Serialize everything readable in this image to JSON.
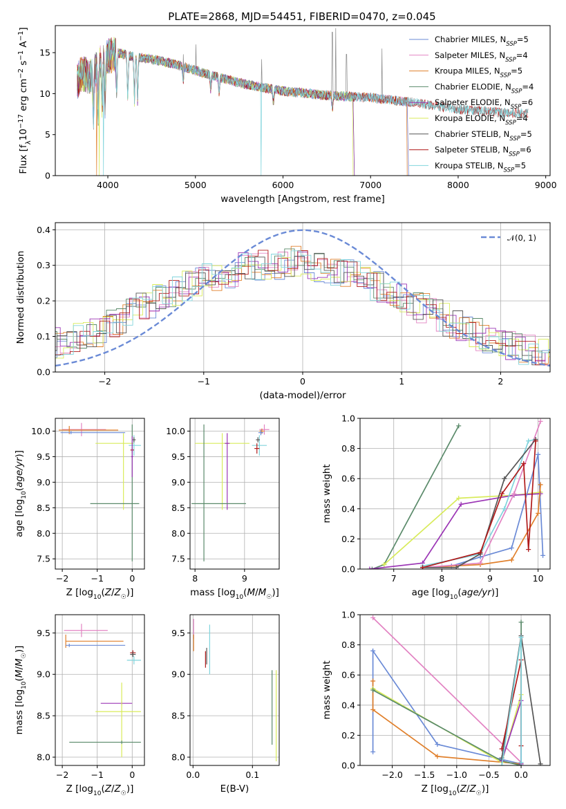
{
  "title": "PLATE=2868, MJD=54451, FIBERID=0470, z=0.045",
  "colors": {
    "Chabrier MILES": "#6a8ad6",
    "Salpeter MILES": "#e282c2",
    "Kroupa MILES": "#e07f2a",
    "Chabrier ELODIE": "#5a8a6a",
    "Salpeter ELODIE": "#9b35b5",
    "Kroupa ELODIE": "#d8eb5a",
    "Chabrier STELIB": "#555555",
    "Salpeter STELIB": "#b01a1a",
    "Kroupa STELIB": "#80d4dc"
  },
  "chart_data": [
    {
      "id": "spectrum",
      "type": "line",
      "xlabel": "wavelength [Angstrom, rest frame]",
      "ylabel": "Flux [f_λ10^-17 erg cm^-2 s^-1 A^-1]",
      "xlim": [
        3400,
        9050
      ],
      "ylim": [
        0,
        18.3
      ],
      "xticks": [
        "4000",
        "5000",
        "6000",
        "7000",
        "8000",
        "9000"
      ],
      "yticks": [
        "0",
        "5",
        "10",
        "15"
      ],
      "legend_position": "top-right",
      "legend": [
        {
          "name": "Chabrier MILES",
          "nssp": "5"
        },
        {
          "name": "Salpeter MILES",
          "nssp": "4"
        },
        {
          "name": "Kroupa MILES",
          "nssp": "5"
        },
        {
          "name": "Chabrier ELODIE",
          "nssp": "4"
        },
        {
          "name": "Salpeter ELODIE",
          "nssp": "6"
        },
        {
          "name": "Kroupa ELODIE",
          "nssp": "4"
        },
        {
          "name": "Chabrier STELIB",
          "nssp": "5"
        },
        {
          "name": "Salpeter STELIB",
          "nssp": "6"
        },
        {
          "name": "Kroupa STELIB",
          "nssp": "5"
        }
      ],
      "continuum": [
        [
          3650,
          11.5
        ],
        [
          3700,
          12.5
        ],
        [
          3800,
          12.0
        ],
        [
          3900,
          13.5
        ],
        [
          4000,
          14.5
        ],
        [
          4100,
          15.0
        ],
        [
          4300,
          14.5
        ],
        [
          4500,
          14.2
        ],
        [
          4800,
          13.5
        ],
        [
          5000,
          12.8
        ],
        [
          5200,
          12.2
        ],
        [
          5500,
          11.3
        ],
        [
          5800,
          10.7
        ],
        [
          6000,
          10.3
        ],
        [
          6500,
          9.8
        ],
        [
          7000,
          9.5
        ],
        [
          7500,
          8.9
        ],
        [
          8000,
          8.1
        ],
        [
          8500,
          7.7
        ],
        [
          8800,
          7.6
        ]
      ],
      "emission_lines": [
        [
          4861,
          14.8
        ],
        [
          5007,
          16.0
        ],
        [
          5755,
          14.2
        ],
        [
          6563,
          17.5
        ],
        [
          6600,
          18.0
        ],
        [
          6725,
          14.8
        ],
        [
          7130,
          15.5
        ]
      ],
      "model_dropouts": [
        {
          "series": "Kroupa MILES",
          "x": 3870
        },
        {
          "series": "Kroupa ELODIE",
          "x": 3900
        },
        {
          "series": "Kroupa STELIB",
          "x": 3950
        },
        {
          "series": "Kroupa STELIB",
          "x": 5750
        },
        {
          "series": "Kroupa ELODIE",
          "x": 6800
        },
        {
          "series": "Kroupa MILES",
          "x": 7420
        }
      ],
      "model_ends": {
        "MILES": 7420,
        "ELODIE": 6800,
        "STELIB": 8800
      }
    },
    {
      "id": "residuals",
      "type": "histogram",
      "xlabel": "(data-model)/error",
      "ylabel": "Normed distribution",
      "xlim": [
        -2.5,
        2.5
      ],
      "ylim": [
        0,
        0.42
      ],
      "xticks": [
        "−2",
        "−1",
        "0",
        "1",
        "2"
      ],
      "yticks": [
        "0.0",
        "0.1",
        "0.2",
        "0.3",
        "0.4"
      ],
      "bin_width": 0.1,
      "legend_position": "top-right",
      "reference_curve": {
        "name": "𝒩(0, 1)",
        "mean": 0,
        "sigma": 1
      },
      "envelope": [
        [
          -2.5,
          0.08
        ],
        [
          -2.0,
          0.12
        ],
        [
          -1.5,
          0.2
        ],
        [
          -1.0,
          0.26
        ],
        [
          -0.5,
          0.3
        ],
        [
          0.0,
          0.31
        ],
        [
          0.5,
          0.27
        ],
        [
          1.0,
          0.21
        ],
        [
          1.5,
          0.14
        ],
        [
          2.0,
          0.08
        ],
        [
          2.5,
          0.045
        ]
      ]
    },
    {
      "id": "age_vs_Z",
      "type": "errorbar",
      "xlabel": "Z [log₁₀(Z/Z☉)]",
      "ylabel": "age  [log₁₀(age/yr)]",
      "xlim": [
        -2.2,
        0.35
      ],
      "ylim": [
        7.3,
        10.25
      ],
      "xticks": [
        "−2",
        "−1",
        "0"
      ],
      "yticks": [
        "7.5",
        "8.0",
        "8.5",
        "9.0",
        "9.5",
        "10.0"
      ],
      "points": [
        {
          "series": "Salpeter MILES",
          "x": -1.45,
          "y": 10.03,
          "xerr": [
            0.55,
            0.7
          ],
          "yerr": 0.13
        },
        {
          "series": "Kroupa MILES",
          "x": -1.8,
          "y": 10.02,
          "xerr": [
            0.3,
            1.4
          ],
          "yerr": 0.08
        },
        {
          "series": "Chabrier MILES",
          "x": -1.75,
          "y": 9.97,
          "xerr": [
            0.3,
            1.55
          ],
          "yerr": 0.03
        },
        {
          "series": "Kroupa ELODIE",
          "x": -0.25,
          "y": 9.76,
          "xerr": [
            0.8,
            0.3
          ],
          "yerr": [
            1.3,
            0.2
          ]
        },
        {
          "series": "Kroupa STELIB",
          "x": 0.05,
          "y": 9.72,
          "xerr": [
            0.15,
            0.2
          ],
          "yerr": 0.2
        },
        {
          "series": "Chabrier STELIB",
          "x": 0.05,
          "y": 9.83,
          "xerr": 0.05,
          "yerr": 0.05
        },
        {
          "series": "Salpeter STELIB",
          "x": 0.0,
          "y": 9.63,
          "xerr": 0.05,
          "yerr": 0.05
        },
        {
          "series": "Chabrier ELODIE",
          "x": 0.0,
          "y": 8.58,
          "xerr": [
            1.2,
            0.2
          ],
          "yerr": [
            1.13,
            1.55
          ]
        },
        {
          "series": "Salpeter ELODIE",
          "x": 0.0,
          "y": 9.5,
          "xerr": 0.03,
          "yerr": 0.4
        }
      ]
    },
    {
      "id": "age_vs_mass",
      "type": "errorbar",
      "xlabel": "mass [log₁₀(M/M☉)]",
      "ylabel": "",
      "xlim": [
        7.9,
        9.7
      ],
      "ylim": [
        7.3,
        10.25
      ],
      "xticks": [
        "8",
        "9"
      ],
      "yticks": [
        "7.5",
        "8.0",
        "8.5",
        "9.0",
        "9.5",
        "10.0"
      ],
      "points": [
        {
          "series": "Salpeter MILES",
          "x": 9.4,
          "y": 10.03,
          "xerr": 0.1,
          "yerr": 0.1
        },
        {
          "series": "Kroupa MILES",
          "x": 9.35,
          "y": 10.0,
          "xerr": 0.05,
          "yerr": 0.05
        },
        {
          "series": "Chabrier MILES",
          "x": 9.33,
          "y": 9.97,
          "xerr": 0.05,
          "yerr": 0.05
        },
        {
          "series": "Kroupa ELODIE",
          "x": 8.55,
          "y": 9.76,
          "xerr": 0.55,
          "yerr": [
            1.3,
            0.2
          ]
        },
        {
          "series": "Salpeter ELODIE",
          "x": 8.65,
          "y": 9.76,
          "xerr": 0.05,
          "yerr": [
            1.3,
            0.2
          ]
        },
        {
          "series": "Kroupa STELIB",
          "x": 9.3,
          "y": 9.72,
          "xerr": 0.15,
          "yerr": 0.2
        },
        {
          "series": "Chabrier STELIB",
          "x": 9.27,
          "y": 9.83,
          "xerr": 0.04,
          "yerr": 0.05
        },
        {
          "series": "Salpeter STELIB",
          "x": 9.25,
          "y": 9.66,
          "xerr": 0.05,
          "yerr": 0.1
        },
        {
          "series": "Chabrier ELODIE",
          "x": 8.18,
          "y": 8.58,
          "xerr": [
            0.25,
            0.85
          ],
          "yerr": [
            1.13,
            1.55
          ]
        }
      ]
    },
    {
      "id": "weight_vs_age",
      "type": "line",
      "xlabel": "age  [log₁₀(age/yr)]",
      "ylabel": "mass weight",
      "xlim": [
        6.3,
        10.25
      ],
      "ylim": [
        0,
        1.0
      ],
      "xticks": [
        "7",
        "8",
        "9",
        "10"
      ],
      "yticks": [
        "0.0",
        "0.2",
        "0.4",
        "0.6",
        "0.8",
        "1.0"
      ],
      "series": [
        {
          "name": "Chabrier ELODIE",
          "x": [
            6.55,
            6.8,
            8.35
          ],
          "y": [
            0.0,
            0.03,
            0.95
          ]
        },
        {
          "name": "Kroupa ELODIE",
          "x": [
            6.8,
            8.35,
            9.5,
            10.05
          ],
          "y": [
            0.03,
            0.47,
            0.49,
            0.51
          ]
        },
        {
          "name": "Salpeter ELODIE",
          "x": [
            6.5,
            7.6,
            8.4,
            9.5,
            10.05
          ],
          "y": [
            0.0,
            0.04,
            0.43,
            0.49,
            0.5
          ]
        },
        {
          "name": "Chabrier MILES",
          "x": [
            7.6,
            8.2,
            8.8,
            9.45,
            10.0,
            10.1
          ],
          "y": [
            0.01,
            0.02,
            0.08,
            0.14,
            0.76,
            0.09
          ]
        },
        {
          "name": "Kroupa MILES",
          "x": [
            7.6,
            8.8,
            9.45,
            10.0,
            10.05
          ],
          "y": [
            0.01,
            0.03,
            0.06,
            0.37,
            0.56
          ]
        },
        {
          "name": "Salpeter MILES",
          "x": [
            7.6,
            8.8,
            9.5,
            10.05
          ],
          "y": [
            0.01,
            0.04,
            0.5,
            0.98
          ]
        },
        {
          "name": "Kroupa STELIB",
          "x": [
            7.6,
            8.8,
            9.3,
            9.8,
            9.95
          ],
          "y": [
            0.02,
            0.1,
            0.4,
            0.85,
            0.86
          ]
        },
        {
          "name": "Chabrier STELIB",
          "x": [
            7.6,
            8.3,
            8.8,
            9.3,
            9.95
          ],
          "y": [
            0.01,
            0.01,
            0.1,
            0.6,
            0.86
          ]
        },
        {
          "name": "Salpeter STELIB",
          "x": [
            7.6,
            8.8,
            9.25,
            9.7,
            9.8,
            9.95
          ],
          "y": [
            0.01,
            0.11,
            0.5,
            0.7,
            0.13,
            0.85
          ]
        }
      ]
    },
    {
      "id": "mass_vs_Z",
      "type": "errorbar",
      "xlabel": "Z [log₁₀(Z/Z☉)]",
      "ylabel": "mass [log₁₀(M/M☉)]",
      "xlim": [
        -2.2,
        0.35
      ],
      "ylim": [
        7.9,
        9.72
      ],
      "xticks": [
        "−2",
        "−1",
        "0"
      ],
      "yticks": [
        "8.0",
        "8.5",
        "9.0",
        "9.5"
      ],
      "points": [
        {
          "series": "Salpeter MILES",
          "x": -1.45,
          "y": 9.53,
          "xerr": [
            0.5,
            0.75
          ],
          "yerr": 0.08
        },
        {
          "series": "Kroupa MILES",
          "x": -1.9,
          "y": 9.4,
          "xerr": [
            0.0,
            1.65
          ],
          "yerr": 0.08
        },
        {
          "series": "Chabrier MILES",
          "x": -1.8,
          "y": 9.35,
          "xerr": [
            0.1,
            1.6
          ],
          "yerr": 0.02
        },
        {
          "series": "Salpeter STELIB",
          "x": 0.02,
          "y": 9.26,
          "xerr": 0.08,
          "yerr": 0.03
        },
        {
          "series": "Chabrier STELIB",
          "x": 0.02,
          "y": 9.24,
          "xerr": 0.08,
          "yerr": 0.03
        },
        {
          "series": "Kroupa STELIB",
          "x": 0.05,
          "y": 9.17,
          "xerr": 0.2,
          "yerr": 0.05
        },
        {
          "series": "Salpeter ELODIE",
          "x": -0.3,
          "y": 8.65,
          "xerr": [
            0.6,
            0.3
          ],
          "yerr": 0.02
        },
        {
          "series": "Kroupa ELODIE",
          "x": -0.3,
          "y": 8.55,
          "xerr": [
            0.75,
            0.55
          ],
          "yerr": [
            0.55,
            0.35
          ]
        },
        {
          "series": "Chabrier ELODIE",
          "x": -0.3,
          "y": 8.18,
          "xerr": [
            1.5,
            0.55
          ],
          "yerr": 0.02
        }
      ]
    },
    {
      "id": "mass_vs_ebv",
      "type": "errorbar",
      "xlabel": "E(B-V)",
      "ylabel": "",
      "xlim": [
        -0.005,
        0.145
      ],
      "ylim": [
        7.9,
        9.72
      ],
      "xticks": [
        "0.0",
        "0.1"
      ],
      "yticks": [
        "8.0",
        "8.5",
        "9.0",
        "9.5"
      ],
      "points": [
        {
          "series": "Salpeter MILES",
          "x": 0.001,
          "y": 9.55,
          "xerr": 0,
          "yerr": 0.12
        },
        {
          "series": "Kroupa MILES",
          "x": 0.001,
          "y": 9.38,
          "xerr": 0,
          "yerr": 0.1
        },
        {
          "series": "Salpeter STELIB",
          "x": 0.021,
          "y": 9.18,
          "xerr": 0,
          "yerr": 0.1
        },
        {
          "series": "Chabrier STELIB",
          "x": 0.023,
          "y": 9.22,
          "xerr": 0,
          "yerr": 0.1
        },
        {
          "series": "Kroupa STELIB",
          "x": 0.028,
          "y": 9.3,
          "xerr": 0,
          "yerr": 0.3
        },
        {
          "series": "Chabrier ELODIE",
          "x": 0.133,
          "y": 8.6,
          "xerr": 0,
          "yerr": 0.45
        },
        {
          "series": "Kroupa ELODIE",
          "x": 0.14,
          "y": 8.5,
          "xerr": 0,
          "yerr": 0.55
        }
      ]
    },
    {
      "id": "weight_vs_Z",
      "type": "line",
      "xlabel": "Z [log₁₀(Z/Z☉)]",
      "ylabel": "mass weight",
      "xlim": [
        -2.5,
        0.45
      ],
      "ylim": [
        0,
        1.0
      ],
      "xticks": [
        "−2.0",
        "−1.5",
        "−1.0",
        "−0.5",
        "0.0"
      ],
      "yticks": [
        "0.0",
        "0.2",
        "0.4",
        "0.6",
        "0.8",
        "1.0"
      ],
      "series": [
        {
          "name": "Salpeter MILES",
          "x": [
            -2.3,
            0.0
          ],
          "y": [
            0.98,
            0.02
          ]
        },
        {
          "name": "Chabrier MILES",
          "x": [
            -2.3,
            -2.3,
            -1.3,
            0.0
          ],
          "y": [
            0.09,
            0.76,
            0.14,
            0.01
          ]
        },
        {
          "name": "Kroupa MILES",
          "x": [
            -2.3,
            -2.3,
            -1.3,
            0.0
          ],
          "y": [
            0.56,
            0.37,
            0.06,
            0.01
          ]
        },
        {
          "name": "Kroupa ELODIE",
          "x": [
            -2.3,
            -0.3,
            0.0
          ],
          "y": [
            0.51,
            0.02,
            0.47
          ]
        },
        {
          "name": "Chabrier ELODIE",
          "x": [
            -2.3,
            -0.3,
            0.0,
            0.0
          ],
          "y": [
            0.5,
            0.03,
            0.0,
            0.95
          ]
        },
        {
          "name": "Salpeter ELODIE",
          "x": [
            -0.3,
            0.0,
            0.0
          ],
          "y": [
            0.03,
            0.43,
            0.01
          ]
        },
        {
          "name": "Chabrier STELIB",
          "x": [
            -0.3,
            0.0,
            0.3
          ],
          "y": [
            0.05,
            0.86,
            0.01
          ]
        },
        {
          "name": "Salpeter STELIB",
          "x": [
            -0.3,
            0.0,
            0.0
          ],
          "y": [
            0.11,
            0.7,
            0.13
          ]
        },
        {
          "name": "Kroupa STELIB",
          "x": [
            -0.3,
            0.0,
            0.0
          ],
          "y": [
            0.0,
            0.85,
            0.02
          ]
        }
      ]
    }
  ]
}
